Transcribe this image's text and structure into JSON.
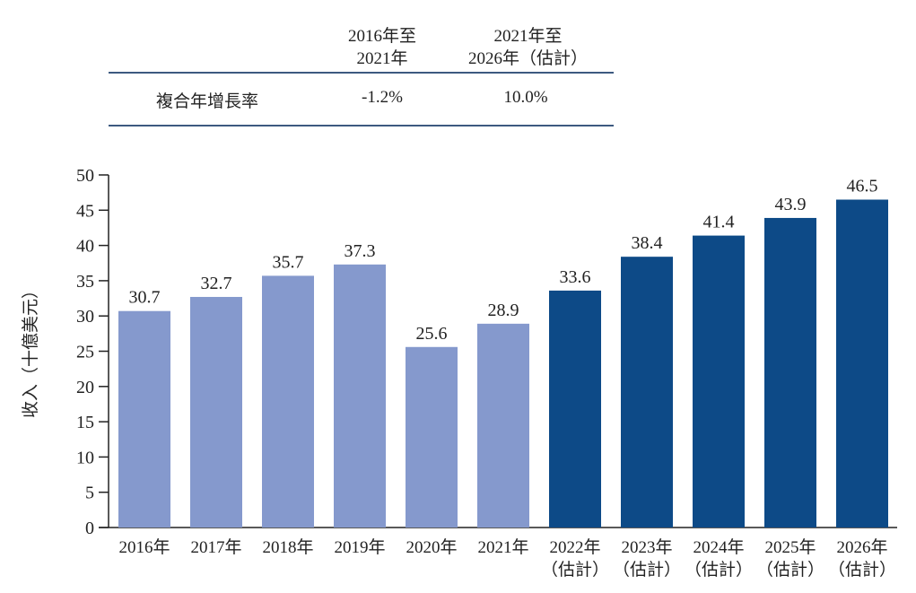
{
  "cagr_table": {
    "headers": [
      "2016年至\n2021年",
      "2021年至\n2026年（估計）"
    ],
    "header_lines": [
      [
        "2016年至",
        "2021年"
      ],
      [
        "2021年至",
        "2026年（估計）"
      ]
    ],
    "row_label": "複合年增長率",
    "values": [
      "-1.2%",
      "10.0%"
    ]
  },
  "chart_data": {
    "type": "bar",
    "title": "",
    "xlabel": "",
    "ylabel": "收入（十億美元）",
    "ylim": [
      0,
      50
    ],
    "yticks": [
      0,
      5,
      10,
      15,
      20,
      25,
      30,
      35,
      40,
      45,
      50
    ],
    "grid": false,
    "categories": [
      [
        "2016年"
      ],
      [
        "2017年"
      ],
      [
        "2018年"
      ],
      [
        "2019年"
      ],
      [
        "2020年"
      ],
      [
        "2021年"
      ],
      [
        "2022年",
        "（估計）"
      ],
      [
        "2023年",
        "（估計）"
      ],
      [
        "2024年",
        "（估計）"
      ],
      [
        "2025年",
        "（估計）"
      ],
      [
        "2026年",
        "（估計）"
      ]
    ],
    "values": [
      30.7,
      32.7,
      35.7,
      37.3,
      25.6,
      28.9,
      33.6,
      38.4,
      41.4,
      43.9,
      46.5
    ],
    "estimated": [
      false,
      false,
      false,
      false,
      false,
      false,
      true,
      true,
      true,
      true,
      true
    ],
    "colors": {
      "historical": "#8599cd",
      "estimated": "#0d4a87",
      "axis": "#222222"
    }
  }
}
